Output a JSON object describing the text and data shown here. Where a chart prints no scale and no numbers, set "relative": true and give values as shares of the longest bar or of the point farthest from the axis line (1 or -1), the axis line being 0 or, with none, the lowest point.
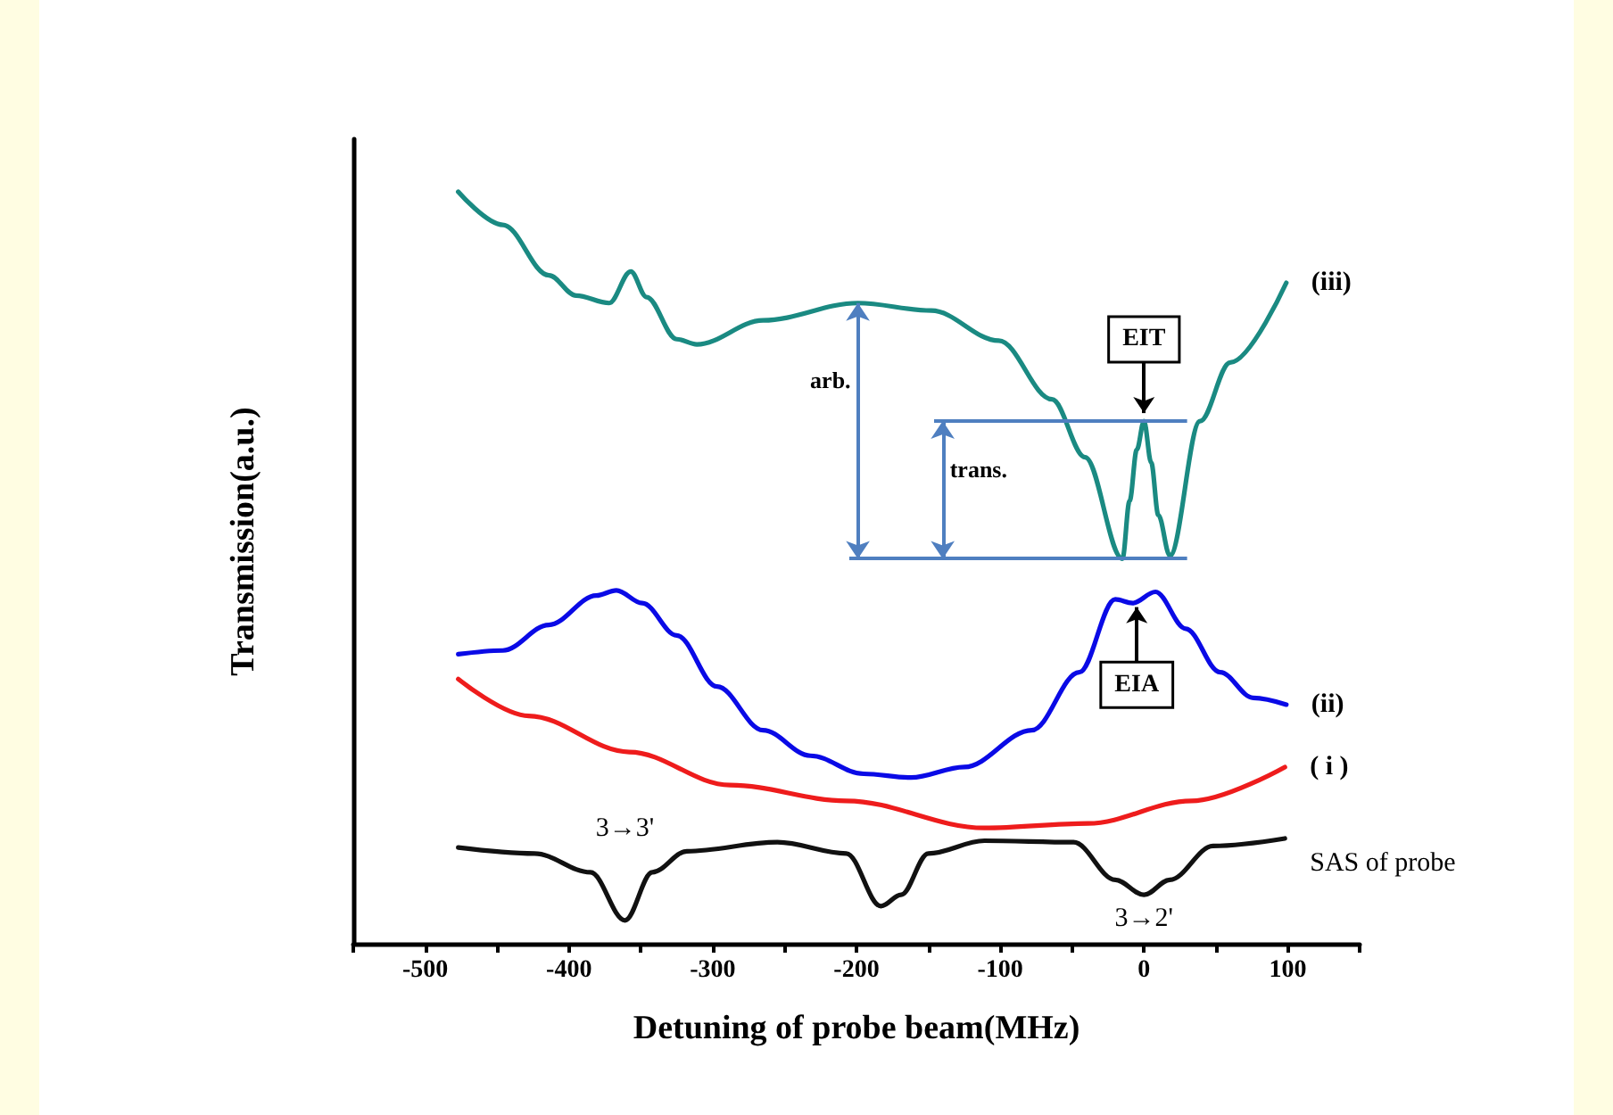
{
  "chart_data": {
    "type": "line",
    "relative": true,
    "xlabel": "Detuning of probe beam(MHz)",
    "ylabel": "Transmission(a.u.)",
    "xlim": [
      -550,
      150
    ],
    "xticks": [
      {
        "value": -550,
        "label": null
      },
      -500,
      {
        "value": -450,
        "label": null
      },
      -400,
      {
        "value": -350,
        "label": null
      },
      -300,
      {
        "value": -250,
        "label": null
      },
      -200,
      {
        "value": -150,
        "label": null
      },
      -100,
      {
        "value": -50,
        "label": null
      },
      0,
      {
        "value": 50,
        "label": null
      },
      100,
      {
        "value": 150,
        "label": null
      }
    ],
    "tick_labels": "x",
    "grid": false,
    "legend": false,
    "marker": "none",
    "line_style": "solid",
    "series": [
      {
        "name": "(iii)",
        "color": "#1a8a82",
        "x": [
          -477,
          -446,
          -414,
          -395,
          -372,
          -357,
          -346,
          -325,
          -311,
          -265,
          -199,
          -148,
          -101,
          -64,
          -41,
          -15,
          -10,
          -5,
          0,
          5,
          10,
          18,
          39,
          60,
          99
        ],
        "values": [
          1.0,
          0.956,
          0.889,
          0.862,
          0.852,
          0.894,
          0.86,
          0.804,
          0.797,
          0.829,
          0.852,
          0.842,
          0.802,
          0.724,
          0.647,
          0.512,
          0.589,
          0.657,
          0.695,
          0.64,
          0.57,
          0.516,
          0.695,
          0.773,
          0.879
        ]
      },
      {
        "name": "(ii)",
        "color": "#0a0ae6",
        "x": [
          -477,
          -446,
          -414,
          -381,
          -367,
          -349,
          -325,
          -297,
          -265,
          -232,
          -195,
          -162,
          -125,
          -78,
          -45,
          -20,
          -8,
          8,
          29,
          53,
          76,
          99
        ],
        "values": [
          0.385,
          0.39,
          0.424,
          0.463,
          0.47,
          0.453,
          0.41,
          0.342,
          0.284,
          0.25,
          0.226,
          0.221,
          0.235,
          0.284,
          0.361,
          0.458,
          0.453,
          0.468,
          0.419,
          0.361,
          0.327,
          0.318
        ]
      },
      {
        "name": "( i )",
        "color": "#ee1c1c",
        "x": [
          -477,
          -428,
          -358,
          -288,
          -207,
          -111,
          -39,
          33,
          98
        ],
        "values": [
          0.352,
          0.303,
          0.255,
          0.211,
          0.19,
          0.154,
          0.16,
          0.19,
          0.235
        ]
      },
      {
        "name": "SAS of probe",
        "color": "#111111",
        "x": [
          -477,
          -424,
          -385,
          -361,
          -342,
          -318,
          -255,
          -207,
          -183,
          -169,
          -150,
          -111,
          -49,
          -20,
          0,
          18,
          48,
          98
        ],
        "values": [
          0.128,
          0.12,
          0.095,
          0.031,
          0.095,
          0.123,
          0.135,
          0.12,
          0.05,
          0.065,
          0.12,
          0.137,
          0.135,
          0.085,
          0.065,
          0.085,
          0.13,
          0.14
        ]
      }
    ],
    "annotations": [
      {
        "text": "EIT",
        "x": 0,
        "y": 0.695
      },
      {
        "text": "EIA",
        "x": -5,
        "y": 0.453
      },
      {
        "text": "arb.",
        "x": -199,
        "y": 0.852
      },
      "trans.",
      {
        "text": "3→3'",
        "x": -361,
        "y": 0.031
      },
      {
        "text": "3→2'",
        "x": 0,
        "y": 0.065
      }
    ]
  }
}
